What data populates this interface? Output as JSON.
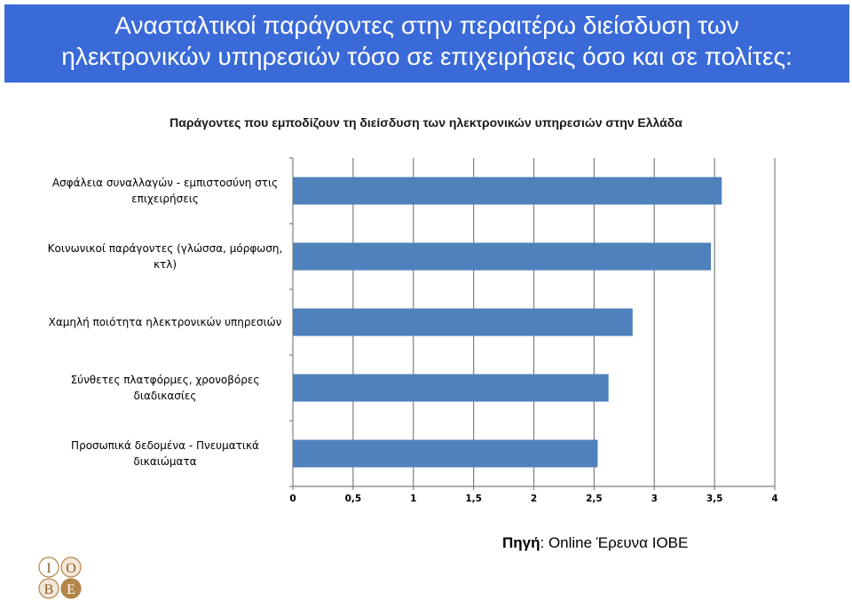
{
  "header": {
    "title_line1": "Ανασταλτικοί παράγοντες στην περαιτέρω διείσδυση των",
    "title_line2": "ηλεκτρονικών υπηρεσιών τόσο σε επιχειρήσεις όσο και σε πολίτες:"
  },
  "source": {
    "label": "Πηγή",
    "text": ": Online  Έρευνα ΙΟΒΕ"
  },
  "logo": {
    "letters": [
      "I",
      "O",
      "B",
      "E"
    ]
  },
  "colors": {
    "header_bg": "#3a6ad8",
    "bar": "#4f81bd"
  },
  "chart_data": {
    "type": "bar",
    "orientation": "horizontal",
    "title": "Παράγοντες που εμποδίζουν τη διείσδυση των ηλεκτρονικών υπηρεσιών στην Ελλάδα",
    "categories": [
      [
        "Ασφάλεια συναλλαγών - εμπιστοσύνη στις",
        "επιχειρήσεις"
      ],
      [
        "Κοινωνικοί παράγοντες (γλώσσα, μόρφωση,",
        "κτλ)"
      ],
      [
        "Χαμηλή ποιότητα ηλεκτρονικών υπηρεσιών"
      ],
      [
        "Σύνθετες πλατφόρμες, χρονοβόρες",
        "διαδικασίες"
      ],
      [
        "Προσωπικά δεδομένα - Πνευματικά",
        "δικαιώματα"
      ]
    ],
    "values": [
      3.56,
      3.47,
      2.82,
      2.62,
      2.53
    ],
    "xlim": [
      0,
      4
    ],
    "xticks": [
      "0",
      "0,5",
      "1",
      "1,5",
      "2",
      "2,5",
      "3",
      "3,5",
      "4"
    ],
    "grid": true,
    "legend": "none"
  }
}
